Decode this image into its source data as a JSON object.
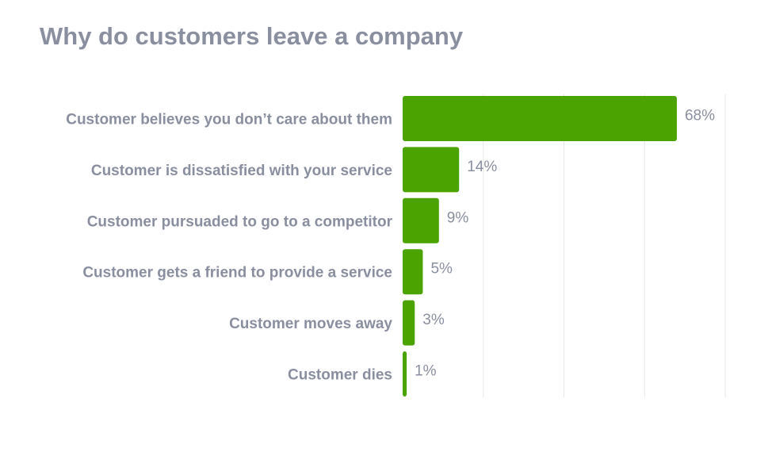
{
  "chart_data": {
    "type": "bar",
    "orientation": "horizontal",
    "title": "Why do customers leave a company",
    "categories": [
      "Customer believes you don’t care about them",
      "Customer is dissatisfied with your service",
      "Customer pursuaded to go to a competitor",
      "Customer gets a friend to provide a service",
      "Customer moves away",
      "Customer dies"
    ],
    "values": [
      68,
      14,
      9,
      5,
      3,
      1
    ],
    "value_labels": [
      "68%",
      "14%",
      "9%",
      "5%",
      "3%",
      "1%"
    ],
    "xlim": [
      0,
      80
    ],
    "grid": true,
    "bar_color": "#4aa300",
    "text_color": "#8a8fa0"
  }
}
